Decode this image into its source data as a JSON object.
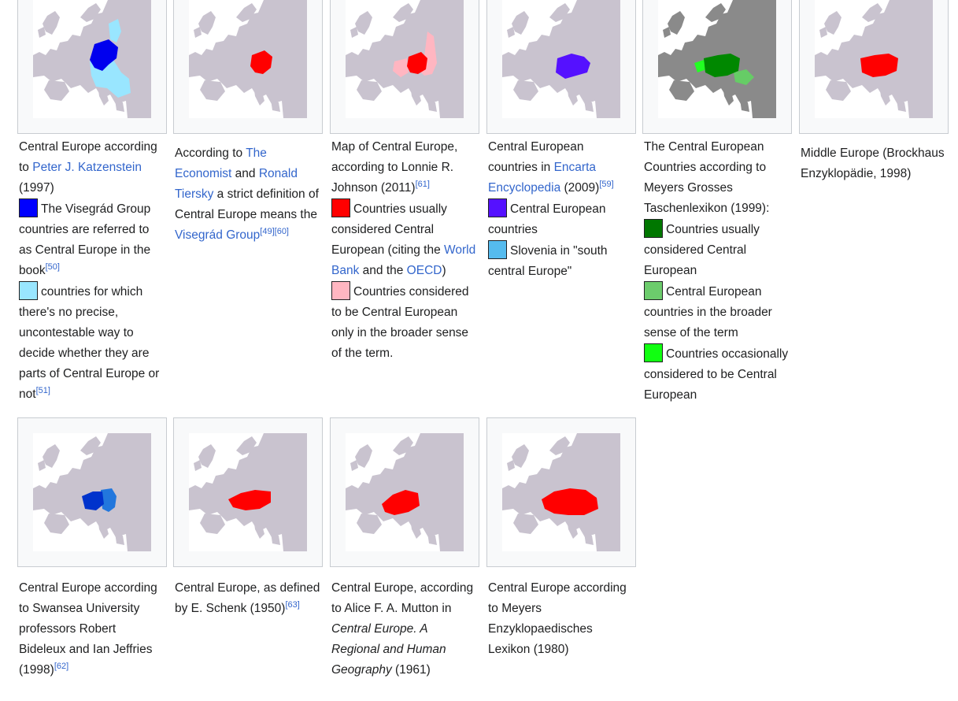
{
  "colors": {
    "land": "#c9c3cf",
    "sea": "#ffffff",
    "land_dark": "#8a8a8a",
    "link": "#3366cc"
  },
  "items": [
    {
      "map_icon": "europe-map-icon",
      "highlight": "#0000ee",
      "highlight2": "#99e6ff",
      "caption": {
        "t1": "Central Europe according to ",
        "link1": "Peter J. Katzenstein",
        "t2": " (1997)"
      },
      "legend": [
        {
          "color": "#0000ff",
          "text": "The Visegrád Group countries are referred to as Central Europe in the book",
          "ref": "[50]"
        },
        {
          "color": "#99e6ff",
          "text": "countries for which there's no precise, uncontestable way to decide whether they are parts of Central Europe or not",
          "ref": "[51]"
        }
      ]
    },
    {
      "highlight": "#ff0000",
      "caption": {
        "t1": "According to ",
        "link1": "The Economist",
        "t2": " and ",
        "link2": "Ronald Tiersky",
        "t3": " a strict definition of Central Europe means the ",
        "link3": "Visegrád Group",
        "ref1": "[49]",
        "ref2": "[60]"
      }
    },
    {
      "highlight": "#ff0000",
      "highlight2": "#ffb6c1",
      "caption": {
        "t1": "Map of Central Europe, according to Lonnie R. Johnson (2011)",
        "ref1": "[61]"
      },
      "legend": [
        {
          "color": "#ff0000",
          "text": "Countries usually considered Central European (citing the ",
          "link1": "World Bank",
          "t2": " and the ",
          "link2": "OECD",
          "t3": ")"
        },
        {
          "color": "#ffb6c1",
          "text": "Countries considered to be Central European only in the broader sense of the term."
        }
      ]
    },
    {
      "highlight": "#5511ff",
      "caption": {
        "t1": "Central European countries in ",
        "link1": "Encarta Encyclopedia",
        "t2": " (2009)",
        "ref1": "[59]"
      },
      "legend": [
        {
          "color": "#5511ff",
          "text": "Central European countries"
        },
        {
          "color": "#55bbee",
          "text": "Slovenia in \"south central Europe\""
        }
      ]
    },
    {
      "highlight": "#008800",
      "highlight2": "#66cc66",
      "highlight3": "#22ff22",
      "caption": {
        "t1": "The Central European Countries according to Meyers Grosses Taschenlexikon (1999):"
      },
      "legend": [
        {
          "color": "#007700",
          "text": "Countries usually considered Central European"
        },
        {
          "color": "#6ccc6c",
          "text": "Central European countries in the broader sense of the term"
        },
        {
          "color": "#11ff11",
          "text": "Countries occasionally considered to be Central European"
        }
      ]
    },
    {
      "highlight": "#ff0000",
      "caption": {
        "t1": "Middle Europe (Brockhaus Enzyklopädie, 1998)"
      }
    },
    {
      "highlight": "#0033cc",
      "highlight2": "#2277dd",
      "caption": {
        "t1": "Central Europe according to Swansea University professors Robert Bideleux and Ian Jeffries (1998)",
        "ref1": "[62]"
      }
    },
    {
      "highlight": "#ff0000",
      "caption": {
        "t1": "Central Europe, as defined by E. Schenk (1950)",
        "ref1": "[63]"
      }
    },
    {
      "highlight": "#ff0000",
      "caption": {
        "t1": "Central Europe, according to Alice F. A. Mutton in ",
        "italic1": "Central Europe. A Regional and Human Geography",
        "t2": " (1961)"
      }
    },
    {
      "highlight": "#ff0000",
      "caption": {
        "t1": "Central Europe according to Meyers Enzyklopaedisches Lexikon (1980)"
      }
    }
  ]
}
